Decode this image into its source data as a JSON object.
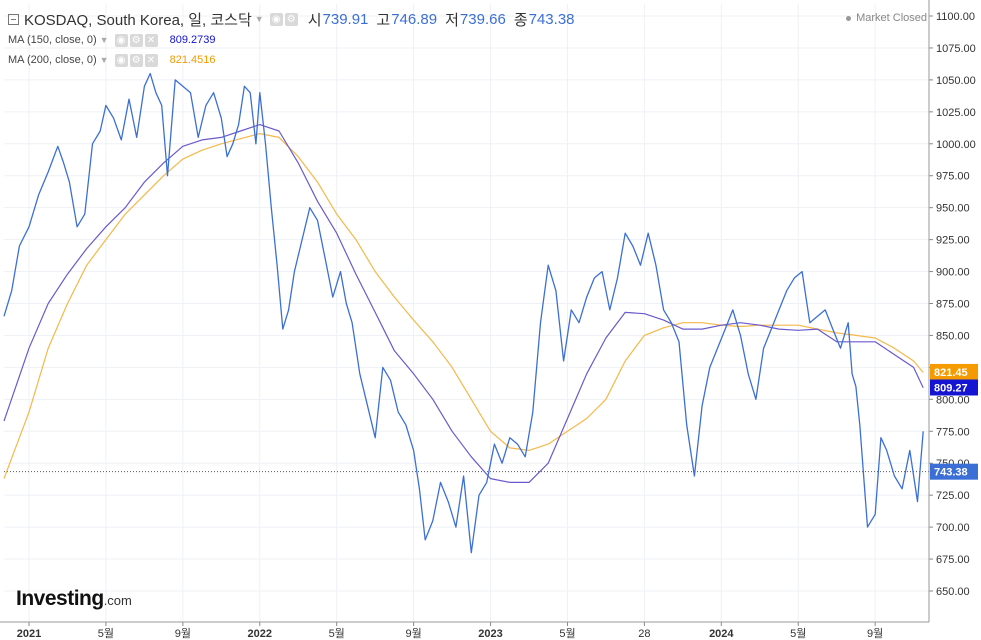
{
  "header": {
    "symbol_title": "KOSDAQ, South Korea, 일, 코스닥",
    "open_label": "시",
    "open_value": "739.91",
    "high_label": "고",
    "high_value": "746.89",
    "low_label": "저",
    "low_value": "739.66",
    "close_label": "종",
    "close_value": "743.38",
    "market_status": "Market Closed"
  },
  "indicators": [
    {
      "label": "MA (150, close, 0)",
      "value": "809.2739",
      "color": "#1414d2",
      "line_color": "#6a5acd"
    },
    {
      "label": "MA (200, close, 0)",
      "value": "821.4516",
      "color": "#f59b00",
      "line_color": "#f5b84a"
    }
  ],
  "logo": {
    "brand": "Investing",
    "tld": ".com"
  },
  "colors": {
    "price_line": "#3c6fd6",
    "axis_text": "#333333",
    "grid": "#eef1f5",
    "last_price_bg": "#3c6fd6"
  },
  "chart_data": {
    "type": "line",
    "title": "KOSDAQ, South Korea, 일, 코스닥",
    "y_ticks": [
      650,
      675,
      700,
      725,
      750,
      775,
      800,
      825,
      850,
      875,
      900,
      925,
      950,
      975,
      1000,
      1025,
      1050,
      1075,
      1100
    ],
    "y_tick_labels": [
      "650.00",
      "675.00",
      "700.00",
      "725.00",
      "750.00",
      "775.00",
      "800.00",
      "825.00",
      "850.00",
      "875.00",
      "900.00",
      "925.00",
      "950.00",
      "975.00",
      "1000.00",
      "1025.00",
      "1050.00",
      "1075.00",
      "1100.00"
    ],
    "ylim": [
      640,
      1110
    ],
    "x_labels": [
      {
        "t": 0.0,
        "label": "2021"
      },
      {
        "t": 4.0,
        "label": "5월"
      },
      {
        "t": 8.0,
        "label": "9월"
      },
      {
        "t": 12.0,
        "label": "2022"
      },
      {
        "t": 16.0,
        "label": "5월"
      },
      {
        "t": 20.0,
        "label": "9월"
      },
      {
        "t": 24.0,
        "label": "2023"
      },
      {
        "t": 28.0,
        "label": "5월"
      },
      {
        "t": 32.0,
        "label": "28"
      },
      {
        "t": 36.0,
        "label": "2024"
      },
      {
        "t": 40.0,
        "label": "5월"
      },
      {
        "t": 44.0,
        "label": "9월"
      }
    ],
    "xlim": [
      -1.3,
      46.8
    ],
    "series": [
      {
        "key": "price",
        "t": [
          -1.3,
          -0.9,
          -0.5,
          0.0,
          0.5,
          1.0,
          1.5,
          1.8,
          2.1,
          2.5,
          2.9,
          3.3,
          3.7,
          4.0,
          4.4,
          4.8,
          5.2,
          5.6,
          6.0,
          6.3,
          6.6,
          6.9,
          7.2,
          7.6,
          8.0,
          8.4,
          8.8,
          9.2,
          9.6,
          10.0,
          10.3,
          10.6,
          10.9,
          11.2,
          11.5,
          11.8,
          12.0,
          12.3,
          12.6,
          12.9,
          13.2,
          13.5,
          13.8,
          14.2,
          14.6,
          15.0,
          15.4,
          15.8,
          16.2,
          16.5,
          16.8,
          17.2,
          17.6,
          18.0,
          18.4,
          18.8,
          19.2,
          19.6,
          20.0,
          20.3,
          20.6,
          21.0,
          21.4,
          21.8,
          22.2,
          22.6,
          23.0,
          23.4,
          23.8,
          24.2,
          24.6,
          25.0,
          25.4,
          25.8,
          26.2,
          26.6,
          27.0,
          27.4,
          27.8,
          28.2,
          28.6,
          29.0,
          29.4,
          29.8,
          30.2,
          30.6,
          31.0,
          31.4,
          31.8,
          32.2,
          32.6,
          33.0,
          33.4,
          33.8,
          34.2,
          34.6,
          35.0,
          35.4,
          35.8,
          36.2,
          36.6,
          37.0,
          37.4,
          37.8,
          38.2,
          38.6,
          39.0,
          39.4,
          39.8,
          40.2,
          40.6,
          41.0,
          41.4,
          41.8,
          42.2,
          42.6,
          42.8,
          43.0,
          43.2,
          43.6,
          44.0,
          44.3,
          44.6,
          45.0,
          45.4,
          45.8,
          46.2,
          46.5
        ],
        "v": [
          865,
          885,
          920,
          935,
          960,
          978,
          998,
          985,
          970,
          935,
          945,
          1000,
          1010,
          1030,
          1020,
          1003,
          1035,
          1005,
          1045,
          1055,
          1040,
          1030,
          975,
          1050,
          1045,
          1040,
          1005,
          1030,
          1040,
          1020,
          990,
          1000,
          1015,
          1045,
          1040,
          1000,
          1040,
          1000,
          950,
          905,
          855,
          870,
          900,
          925,
          950,
          940,
          910,
          880,
          900,
          875,
          860,
          820,
          795,
          770,
          825,
          815,
          790,
          780,
          760,
          730,
          690,
          705,
          735,
          720,
          700,
          740,
          680,
          725,
          735,
          765,
          750,
          770,
          765,
          755,
          790,
          860,
          905,
          885,
          830,
          870,
          860,
          880,
          895,
          900,
          870,
          895,
          930,
          920,
          905,
          930,
          905,
          870,
          860,
          845,
          780,
          740,
          795,
          825,
          840,
          855,
          870,
          850,
          820,
          800,
          840,
          855,
          870,
          885,
          895,
          900,
          860,
          865,
          870,
          855,
          840,
          860,
          820,
          810,
          780,
          700,
          710,
          770,
          760,
          740,
          730,
          760,
          720,
          775,
          750,
          730,
          745,
          743
        ]
      },
      {
        "key": "ma150",
        "t": [
          -1.3,
          0.0,
          1.0,
          2.0,
          3.0,
          4.0,
          5.0,
          6.0,
          7.0,
          8.0,
          9.0,
          10.0,
          11.0,
          12.0,
          13.0,
          14.0,
          15.0,
          16.0,
          17.0,
          18.0,
          19.0,
          20.0,
          21.0,
          22.0,
          23.0,
          24.0,
          25.0,
          26.0,
          27.0,
          28.0,
          29.0,
          30.0,
          31.0,
          32.0,
          33.0,
          34.0,
          35.0,
          36.0,
          37.0,
          38.0,
          39.0,
          40.0,
          41.0,
          42.0,
          43.0,
          44.0,
          45.0,
          46.0,
          46.5
        ],
        "v": [
          783,
          840,
          875,
          898,
          918,
          935,
          950,
          970,
          985,
          998,
          1003,
          1005,
          1010,
          1015,
          1010,
          985,
          955,
          930,
          898,
          868,
          838,
          820,
          800,
          775,
          755,
          738,
          735,
          735,
          750,
          785,
          820,
          848,
          868,
          867,
          862,
          855,
          855,
          858,
          860,
          858,
          855,
          854,
          855,
          845,
          845,
          845,
          835,
          825,
          809
        ]
      },
      {
        "key": "ma200",
        "t": [
          -1.3,
          0.0,
          1.0,
          2.0,
          3.0,
          4.0,
          5.0,
          6.0,
          7.0,
          8.0,
          9.0,
          10.0,
          11.0,
          12.0,
          13.0,
          14.0,
          15.0,
          16.0,
          17.0,
          18.0,
          19.0,
          20.0,
          21.0,
          22.0,
          23.0,
          24.0,
          25.0,
          26.0,
          27.0,
          28.0,
          29.0,
          30.0,
          31.0,
          32.0,
          33.0,
          34.0,
          35.0,
          36.0,
          37.0,
          38.0,
          39.0,
          40.0,
          41.0,
          42.0,
          43.0,
          44.0,
          45.0,
          46.0,
          46.5
        ],
        "v": [
          738,
          790,
          840,
          875,
          905,
          925,
          945,
          960,
          975,
          988,
          995,
          1000,
          1004,
          1008,
          1005,
          990,
          970,
          945,
          925,
          900,
          880,
          862,
          845,
          825,
          800,
          775,
          762,
          760,
          765,
          775,
          785,
          800,
          830,
          850,
          856,
          860,
          860,
          858,
          857,
          858,
          858,
          858,
          855,
          852,
          850,
          848,
          840,
          830,
          821
        ]
      }
    ],
    "last_price": {
      "value": 743.38,
      "label": "743.38"
    },
    "ma150_tag": {
      "value": 809.27,
      "label": "809.27"
    },
    "ma200_tag": {
      "value": 821.45,
      "label": "821.45"
    }
  }
}
